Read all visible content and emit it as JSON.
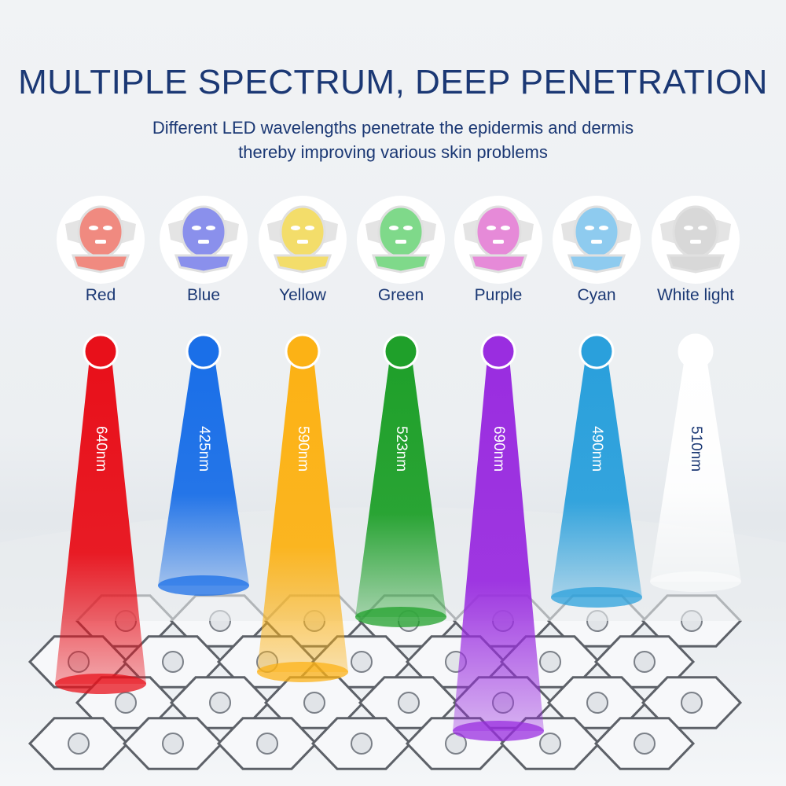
{
  "title": "MULTIPLE SPECTRUM, DEEP PENETRATION",
  "subtitle": [
    "Different LED wavelengths penetrate the epidermis and dermis",
    "thereby improving various skin problems"
  ],
  "lights": [
    {
      "label": "Red",
      "wavelength": "640nm",
      "color": "#e8101a",
      "mask_color": "#f08a80"
    },
    {
      "label": "Blue",
      "wavelength": "425nm",
      "color": "#1a6fe8",
      "mask_color": "#8a90ec"
    },
    {
      "label": "Yellow",
      "wavelength": "590nm",
      "color": "#fcb215",
      "mask_color": "#f3dd6a"
    },
    {
      "label": "Green",
      "wavelength": "523nm",
      "color": "#1fa02a",
      "mask_color": "#7fd98a"
    },
    {
      "label": "Purple",
      "wavelength": "690nm",
      "color": "#9a2de0",
      "mask_color": "#e68ad8"
    },
    {
      "label": "Cyan",
      "wavelength": "490nm",
      "color": "#2aa0dc",
      "mask_color": "#8ecbef"
    },
    {
      "label": "White light",
      "wavelength": "510nm",
      "color": "#ffffff",
      "mask_color": "#d8d8d8"
    }
  ]
}
